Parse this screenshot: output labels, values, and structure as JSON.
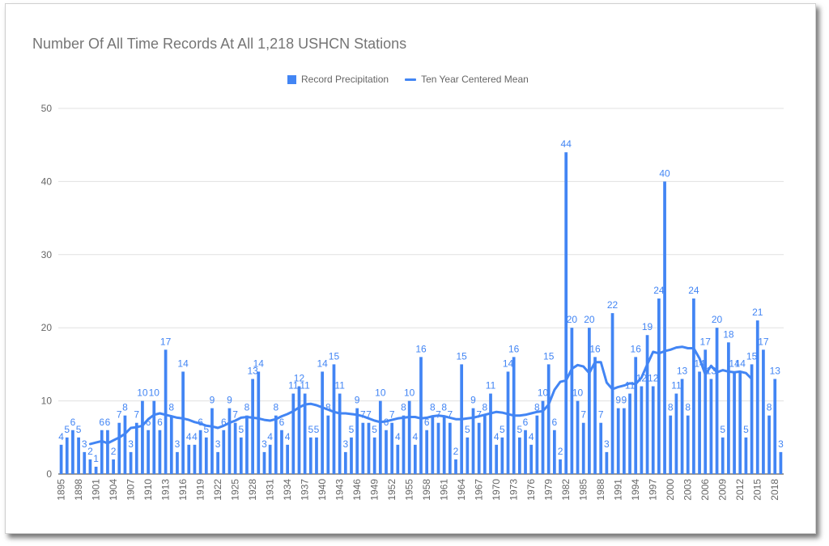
{
  "chart_data": {
    "type": "bar",
    "title": "Number Of All Time Records At All 1,218 USHCN Stations",
    "xlabel": "",
    "ylabel": "",
    "ylim": [
      0,
      50
    ],
    "yticks": [
      0,
      10,
      20,
      30,
      40,
      50
    ],
    "grid": true,
    "legend_position": "top",
    "color": "#4285f4",
    "x": [
      1895,
      1896,
      1897,
      1898,
      1899,
      1900,
      1901,
      1902,
      1903,
      1904,
      1905,
      1906,
      1907,
      1908,
      1909,
      1910,
      1911,
      1912,
      1913,
      1914,
      1915,
      1916,
      1917,
      1918,
      1919,
      1920,
      1921,
      1922,
      1923,
      1924,
      1925,
      1926,
      1927,
      1928,
      1929,
      1930,
      1931,
      1932,
      1933,
      1934,
      1935,
      1936,
      1937,
      1938,
      1939,
      1940,
      1941,
      1942,
      1943,
      1944,
      1945,
      1946,
      1947,
      1948,
      1949,
      1950,
      1951,
      1952,
      1953,
      1954,
      1955,
      1956,
      1957,
      1958,
      1959,
      1960,
      1961,
      1962,
      1963,
      1964,
      1965,
      1966,
      1967,
      1968,
      1969,
      1970,
      1971,
      1972,
      1973,
      1974,
      1975,
      1976,
      1977,
      1978,
      1979,
      1980,
      1981,
      1982,
      1983,
      1984,
      1985,
      1986,
      1987,
      1988,
      1989,
      1990,
      1991,
      1992,
      1993,
      1994,
      1995,
      1996,
      1997,
      1998,
      1999,
      2000,
      2001,
      2002,
      2003,
      2004,
      2005,
      2006,
      2007,
      2008,
      2009,
      2010,
      2011,
      2012,
      2013,
      2014,
      2015,
      2016,
      2017,
      2018,
      2019
    ],
    "xtick_labels": [
      "1895",
      "1898",
      "1901",
      "1904",
      "1907",
      "1910",
      "1913",
      "1916",
      "1919",
      "1922",
      "1925",
      "1928",
      "1931",
      "1934",
      "1937",
      "1940",
      "1943",
      "1946",
      "1949",
      "1952",
      "1955",
      "1958",
      "1961",
      "1964",
      "1967",
      "1970",
      "1973",
      "1976",
      "1979",
      "1982",
      "1985",
      "1988",
      "1991",
      "1994",
      "1997",
      "2000",
      "2003",
      "2006",
      "2009",
      "2012",
      "2015",
      "2018"
    ],
    "series": [
      {
        "name": "Record Precipitation",
        "type": "bar",
        "values": [
          4,
          5,
          6,
          5,
          3,
          2,
          1,
          6,
          6,
          2,
          7,
          8,
          3,
          7,
          10,
          6,
          10,
          6,
          17,
          8,
          3,
          14,
          4,
          4,
          6,
          5,
          9,
          3,
          6,
          9,
          7,
          5,
          8,
          13,
          14,
          3,
          4,
          8,
          6,
          4,
          11,
          12,
          11,
          5,
          5,
          14,
          8,
          15,
          11,
          3,
          5,
          9,
          7,
          7,
          5,
          10,
          6,
          7,
          4,
          8,
          10,
          4,
          16,
          6,
          8,
          7,
          8,
          7,
          2,
          15,
          5,
          9,
          7,
          8,
          11,
          4,
          5,
          14,
          16,
          5,
          6,
          4,
          8,
          10,
          15,
          6,
          2,
          44,
          20,
          10,
          7,
          20,
          16,
          7,
          3,
          22,
          9,
          9,
          11,
          16,
          12,
          19,
          12,
          24,
          40,
          8,
          11,
          13,
          8,
          24,
          14,
          17,
          13,
          20,
          5,
          18,
          14,
          14,
          5,
          15,
          21,
          17,
          8,
          13,
          3
        ]
      },
      {
        "name": "Ten Year Centered Mean",
        "type": "line",
        "x": [
          1900,
          1901,
          1902,
          1903,
          1904,
          1905,
          1906,
          1907,
          1908,
          1909,
          1910,
          1911,
          1912,
          1913,
          1914,
          1915,
          1916,
          1917,
          1918,
          1919,
          1920,
          1921,
          1922,
          1923,
          1924,
          1925,
          1926,
          1927,
          1928,
          1929,
          1930,
          1931,
          1932,
          1933,
          1934,
          1935,
          1936,
          1937,
          1938,
          1939,
          1940,
          1941,
          1942,
          1943,
          1944,
          1945,
          1946,
          1947,
          1948,
          1949,
          1950,
          1951,
          1952,
          1953,
          1954,
          1955,
          1956,
          1957,
          1958,
          1959,
          1960,
          1961,
          1962,
          1963,
          1964,
          1965,
          1966,
          1967,
          1968,
          1969,
          1970,
          1971,
          1972,
          1973,
          1974,
          1975,
          1976,
          1977,
          1978,
          1979,
          1980,
          1981,
          1982,
          1983,
          1984,
          1985,
          1986,
          1987,
          1988,
          1989,
          1990,
          1991,
          1992,
          1993,
          1994,
          1995,
          1996,
          1997,
          1998,
          1999,
          2000,
          2001,
          2002,
          2003,
          2004,
          2005,
          2006,
          2007,
          2008,
          2009,
          2010,
          2011,
          2012,
          2013,
          2014
        ],
        "values": [
          4.1,
          4.3,
          4.5,
          4.2,
          4.6,
          5.0,
          5.5,
          6.3,
          6.4,
          6.6,
          7.5,
          8.1,
          8.3,
          8.1,
          7.9,
          7.7,
          7.6,
          7.4,
          7.1,
          6.9,
          6.6,
          6.5,
          6.3,
          6.6,
          7.0,
          7.3,
          7.7,
          7.8,
          7.7,
          7.6,
          7.4,
          7.3,
          7.5,
          7.9,
          8.2,
          8.6,
          9.1,
          9.5,
          9.6,
          9.4,
          9.1,
          8.8,
          8.5,
          8.3,
          8.3,
          8.2,
          8.1,
          7.9,
          7.6,
          7.3,
          7.1,
          7.2,
          7.4,
          7.6,
          7.7,
          7.8,
          7.8,
          7.6,
          7.7,
          7.9,
          8.0,
          7.9,
          7.7,
          7.5,
          7.5,
          7.6,
          7.7,
          7.9,
          8.1,
          8.3,
          8.5,
          8.4,
          8.2,
          8.0,
          8.0,
          8.1,
          8.3,
          8.5,
          8.6,
          9.5,
          11.5,
          12.6,
          12.8,
          14.4,
          14.9,
          14.7,
          13.8,
          15.3,
          15.3,
          12.5,
          11.6,
          11.9,
          12.1,
          12.4,
          12.3,
          13.2,
          15.0,
          16.7,
          16.5,
          16.8,
          17.0,
          17.3,
          17.4,
          17.2,
          17.2,
          15.8,
          13.6,
          14.8,
          13.9,
          14.2,
          14.0,
          13.9,
          14.0,
          13.8,
          13.0
        ]
      }
    ]
  },
  "legend": {
    "items": [
      "Record Precipitation",
      "Ten Year Centered Mean"
    ]
  }
}
